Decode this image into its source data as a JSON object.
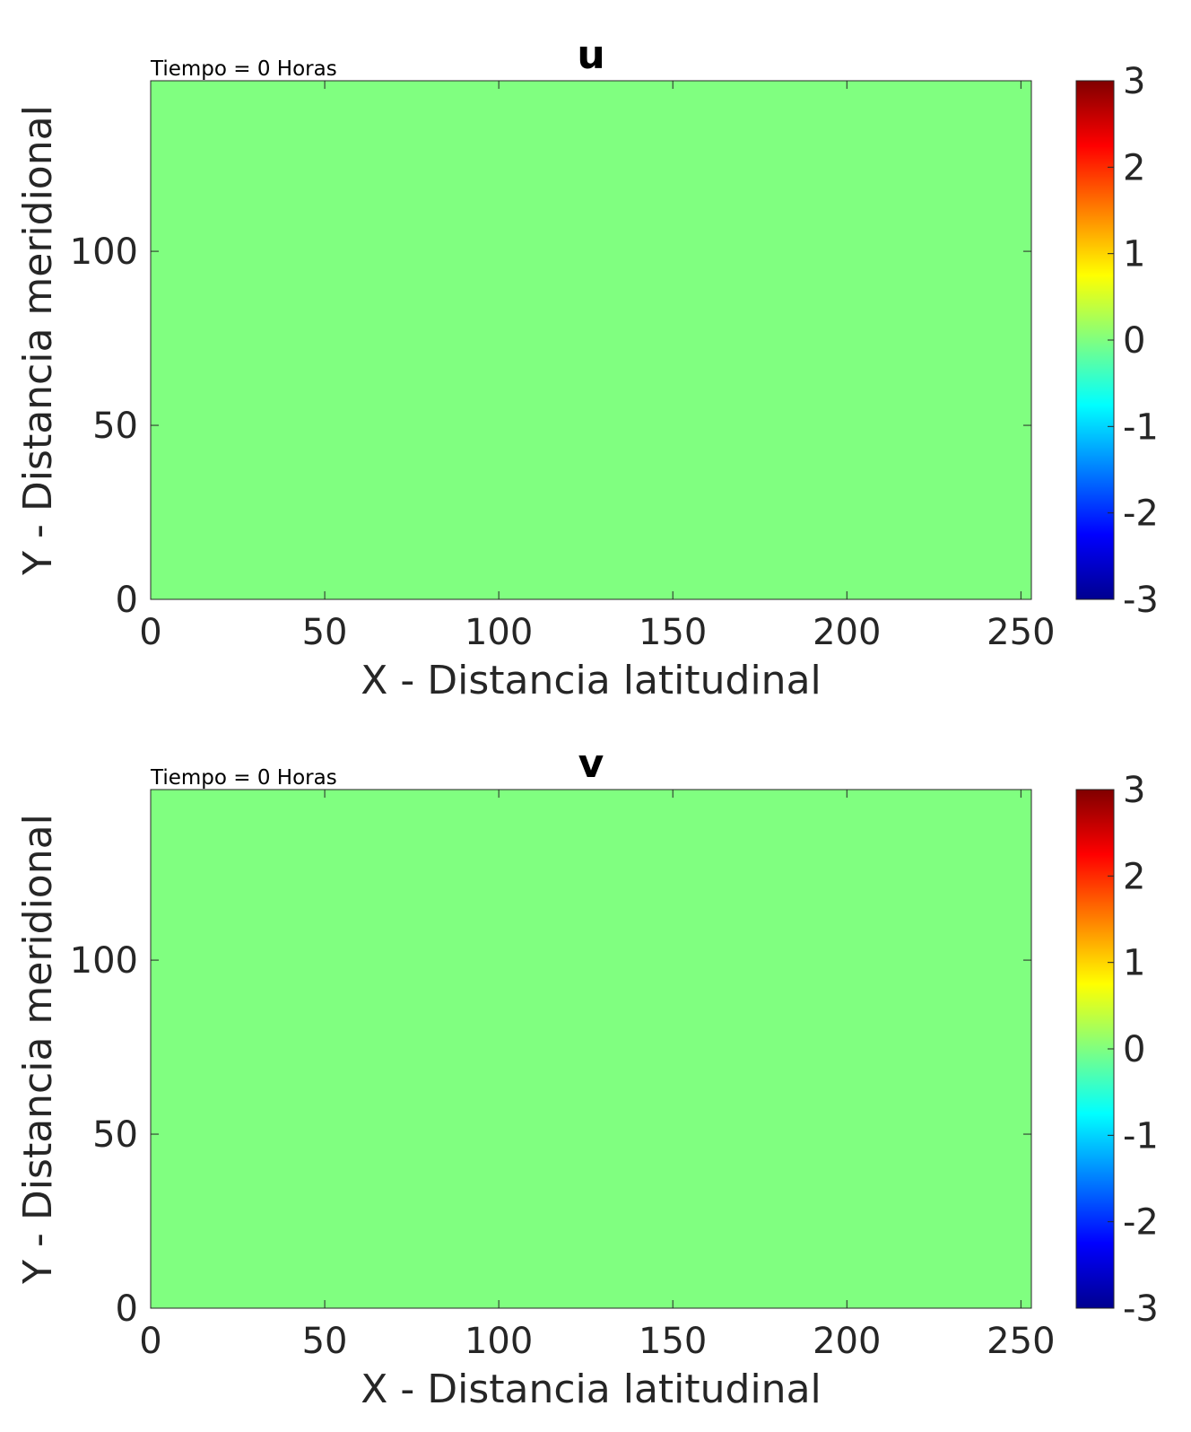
{
  "chart_data": [
    {
      "type": "heatmap",
      "title": "u",
      "annotation": "Tiempo = 0 Horas",
      "xlabel": "X - Distancia latitudinal",
      "ylabel": "Y - Distancia meridional",
      "xlim": [
        0,
        253
      ],
      "ylim": [
        0,
        149
      ],
      "xticks": [
        0,
        50,
        100,
        150,
        200,
        250
      ],
      "yticks": [
        0,
        50,
        100
      ],
      "field_value": 0,
      "colorbar": {
        "colormap": "jet",
        "limits": [
          -3,
          3
        ],
        "ticks": [
          3,
          2,
          1,
          0,
          -1,
          -2,
          -3
        ]
      }
    },
    {
      "type": "heatmap",
      "title": "v",
      "annotation": "Tiempo = 0 Horas",
      "xlabel": "X - Distancia latitudinal",
      "ylabel": "Y - Distancia meridional",
      "xlim": [
        0,
        253
      ],
      "ylim": [
        0,
        149
      ],
      "xticks": [
        0,
        50,
        100,
        150,
        200,
        250
      ],
      "yticks": [
        0,
        50,
        100
      ],
      "field_value": 0,
      "colorbar": {
        "colormap": "jet",
        "limits": [
          -3,
          3
        ],
        "ticks": [
          3,
          2,
          1,
          0,
          -1,
          -2,
          -3
        ]
      }
    }
  ]
}
